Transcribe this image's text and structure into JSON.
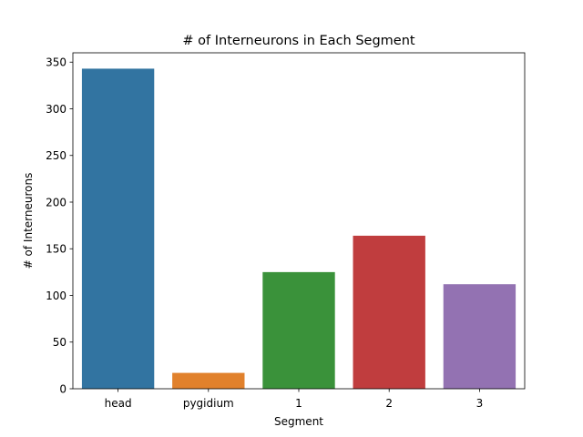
{
  "chart_data": {
    "type": "bar",
    "title": "# of Interneurons in Each Segment",
    "xlabel": "Segment",
    "ylabel": "# of Interneurons",
    "categories": [
      "head",
      "pygidium",
      "1",
      "2",
      "3"
    ],
    "values": [
      343,
      17,
      125,
      164,
      112
    ],
    "colors": [
      "#3274a1",
      "#e1812c",
      "#3a923a",
      "#c03d3e",
      "#9372b2"
    ],
    "ylim": [
      0,
      360
    ],
    "yticks": [
      0,
      50,
      100,
      150,
      200,
      250,
      300,
      350
    ],
    "grid": false,
    "legend": "none"
  }
}
